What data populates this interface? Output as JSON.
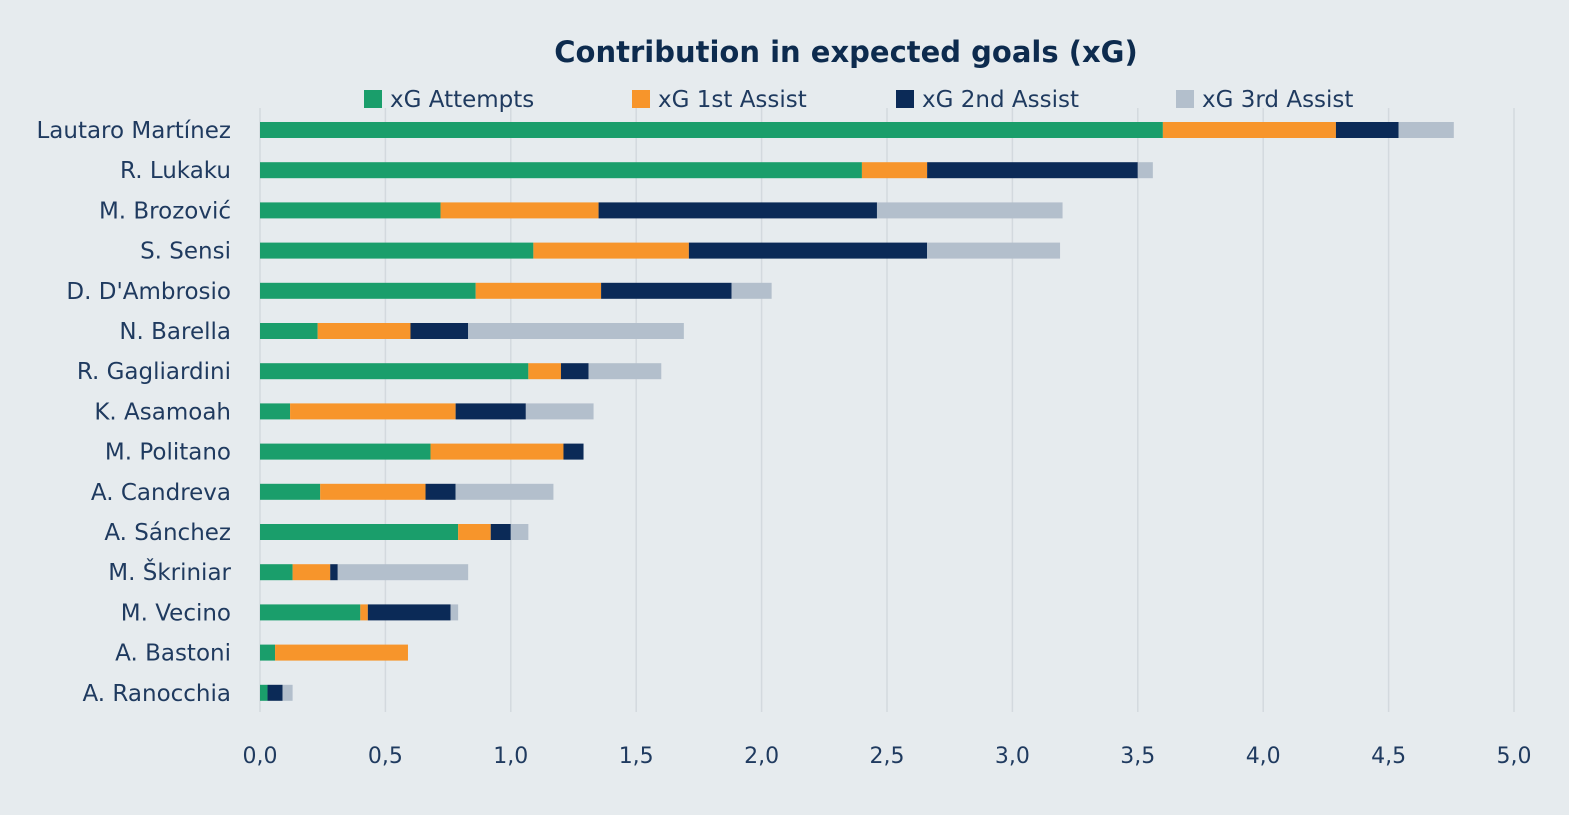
{
  "chart_data": {
    "type": "bar",
    "orientation": "horizontal",
    "stacked": true,
    "title": "Contribution in expected goals (xG)",
    "xlabel": "",
    "ylabel": "",
    "xlim": [
      0,
      5
    ],
    "x_ticks": [
      "0,0",
      "0,5",
      "1,0",
      "1,5",
      "2,0",
      "2,5",
      "3,0",
      "3,5",
      "4,0",
      "4,5",
      "5,0"
    ],
    "grid": "vertical",
    "legend_position": "top",
    "categories": [
      "Lautaro Martínez",
      "R. Lukaku",
      "M. Brozović",
      "S. Sensi",
      "D. D'Ambrosio",
      "N. Barella",
      "R. Gagliardini",
      "K. Asamoah",
      "M. Politano",
      "A. Candreva",
      "A. Sánchez",
      "M. Škriniar",
      "M. Vecino",
      "A. Bastoni",
      "A. Ranocchia"
    ],
    "series": [
      {
        "name": "xG Attempts",
        "color": "#1a9e6b",
        "values": [
          3.6,
          2.4,
          0.72,
          1.09,
          0.86,
          0.23,
          1.07,
          0.12,
          0.68,
          0.24,
          0.79,
          0.13,
          0.4,
          0.06,
          0.03
        ]
      },
      {
        "name": "xG 1st Assist",
        "color": "#f7952b",
        "values": [
          0.69,
          0.26,
          0.63,
          0.62,
          0.5,
          0.37,
          0.13,
          0.66,
          0.53,
          0.42,
          0.13,
          0.15,
          0.03,
          0.53,
          0.0
        ]
      },
      {
        "name": "xG 2nd Assist",
        "color": "#0b2a57",
        "values": [
          0.25,
          0.84,
          1.11,
          0.95,
          0.52,
          0.23,
          0.11,
          0.28,
          0.08,
          0.12,
          0.08,
          0.03,
          0.33,
          0.0,
          0.06
        ]
      },
      {
        "name": "xG 3rd Assist",
        "color": "#b3bfcc",
        "values": [
          0.22,
          0.06,
          0.74,
          0.53,
          0.16,
          0.86,
          0.29,
          0.27,
          0.0,
          0.39,
          0.07,
          0.52,
          0.03,
          0.0,
          0.04
        ]
      }
    ]
  }
}
